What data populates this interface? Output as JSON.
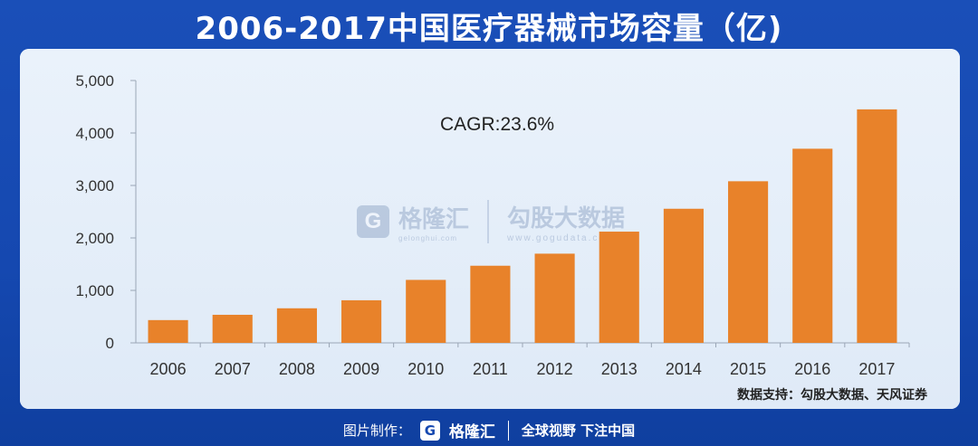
{
  "title": "2006-2017中国医疗器械市场容量（亿)",
  "source_note": "数据支持：勾股大数据、天风证券",
  "watermark": {
    "logo_letter": "G",
    "brand": "格隆汇",
    "brand_sub": "gelonghui.com",
    "right_text": "勾股大数据",
    "url": "www.gogudata.com"
  },
  "footer": {
    "label": "图片制作：",
    "logo_letter": "G",
    "brand": "格隆汇",
    "slogan": "全球视野 下注中国"
  },
  "colors": {
    "bar": "#e8822a",
    "background": "#1548b0"
  },
  "chart_data": {
    "type": "bar",
    "categories": [
      "2006",
      "2007",
      "2008",
      "2009",
      "2010",
      "2011",
      "2012",
      "2013",
      "2014",
      "2015",
      "2016",
      "2017"
    ],
    "values": [
      434,
      535,
      659,
      812,
      1200,
      1470,
      1700,
      2120,
      2556,
      3080,
      3700,
      4450
    ],
    "ylim": [
      0,
      5000
    ],
    "yticks": [
      "0",
      "1,000",
      "2,000",
      "3,000",
      "4,000",
      "5,000"
    ],
    "annotation": "CAGR:23.6%",
    "grid": false,
    "legend": "none"
  }
}
